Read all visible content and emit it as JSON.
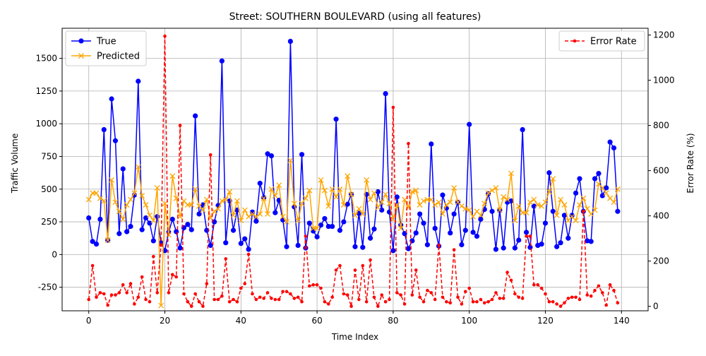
{
  "chart_data": {
    "type": "line",
    "title": "Street: SOUTHERN BOULEVARD (using all features)",
    "xlabel": "Time Index",
    "ylabel": "Traffic Volume",
    "ylabel_right": "Error Rate (%)",
    "xlim": [
      -7,
      147
    ],
    "ylim": [
      -430,
      1730
    ],
    "ylim_right": [
      -20,
      1230
    ],
    "x_ticks": [
      0,
      20,
      40,
      60,
      80,
      100,
      120,
      140
    ],
    "y_ticks": [
      -250,
      0,
      250,
      500,
      750,
      1000,
      1250,
      1500
    ],
    "y_ticks_right": [
      0,
      200,
      400,
      600,
      800,
      1000,
      1200
    ],
    "grid": true,
    "legend_left": "top-left",
    "legend_right": "top-right",
    "series": [
      {
        "name": "True",
        "axis": "left",
        "color": "#0000ff",
        "marker": "circle",
        "linestyle": "solid",
        "values": [
          280,
          100,
          80,
          270,
          955,
          110,
          1190,
          870,
          160,
          655,
          175,
          215,
          455,
          1325,
          190,
          280,
          240,
          105,
          290,
          90,
          30,
          170,
          270,
          175,
          50,
          205,
          230,
          190,
          1060,
          310,
          380,
          185,
          70,
          250,
          375,
          1480,
          90,
          410,
          185,
          340,
          85,
          120,
          40,
          325,
          255,
          545,
          435,
          770,
          755,
          320,
          415,
          265,
          60,
          1630,
          365,
          70,
          765,
          50,
          240,
          180,
          135,
          225,
          275,
          215,
          215,
          1035,
          185,
          250,
          385,
          460,
          60,
          315,
          55,
          460,
          125,
          195,
          480,
          340,
          1230,
          325,
          30,
          440,
          225,
          160,
          45,
          105,
          165,
          310,
          240,
          75,
          845,
          200,
          65,
          455,
          355,
          165,
          310,
          400,
          75,
          185,
          995,
          170,
          140,
          270,
          345,
          465,
          330,
          40,
          340,
          50,
          400,
          410,
          50,
          110,
          955,
          170,
          55,
          370,
          70,
          80,
          240,
          625,
          330,
          60,
          90,
          300,
          125,
          300,
          470,
          580,
          330,
          105,
          100,
          580,
          620,
          450,
          510,
          860,
          815,
          330
        ]
      },
      {
        "name": "Predicted",
        "axis": "left",
        "color": "#ffa500",
        "marker": "x",
        "linestyle": "solid",
        "values": [
          420,
          470,
          470,
          430,
          410,
          110,
          570,
          400,
          330,
          270,
          380,
          420,
          470,
          670,
          450,
          380,
          300,
          260,
          510,
          -390,
          390,
          150,
          600,
          430,
          290,
          410,
          380,
          380,
          500,
          370,
          340,
          420,
          280,
          330,
          350,
          410,
          420,
          480,
          300,
          410,
          260,
          340,
          290,
          310,
          290,
          310,
          430,
          310,
          500,
          450,
          530,
          290,
          250,
          720,
          390,
          260,
          390,
          430,
          490,
          200,
          200,
          570,
          490,
          370,
          500,
          440,
          500,
          380,
          600,
          460,
          300,
          350,
          310,
          570,
          420,
          470,
          360,
          400,
          460,
          390,
          270,
          380,
          200,
          420,
          360,
          480,
          490,
          380,
          410,
          420,
          420,
          380,
          400,
          310,
          380,
          400,
          510,
          400,
          370,
          350,
          340,
          290,
          330,
          300,
          390,
          470,
          490,
          510,
          340,
          440,
          420,
          620,
          260,
          370,
          320,
          320,
          400,
          420,
          380,
          370,
          400,
          480,
          580,
          300,
          420,
          380,
          260,
          290,
          260,
          380,
          430,
          350,
          310,
          340,
          540,
          510,
          470,
          430,
          400,
          500
        ]
      },
      {
        "name": "Error Rate",
        "axis": "right",
        "color": "#ff0000",
        "marker": "dot",
        "linestyle": "dashed",
        "values": [
          30,
          180,
          40,
          60,
          55,
          5,
          50,
          50,
          60,
          95,
          60,
          100,
          10,
          40,
          130,
          30,
          20,
          220,
          60,
          270,
          1195,
          60,
          140,
          130,
          800,
          55,
          20,
          0,
          55,
          20,
          0,
          100,
          670,
          30,
          30,
          45,
          210,
          20,
          30,
          20,
          80,
          100,
          230,
          55,
          30,
          40,
          35,
          60,
          35,
          30,
          30,
          65,
          65,
          55,
          35,
          40,
          20,
          310,
          90,
          95,
          95,
          80,
          20,
          10,
          40,
          160,
          180,
          55,
          50,
          0,
          160,
          30,
          180,
          20,
          205,
          40,
          0,
          50,
          20,
          30,
          880,
          60,
          50,
          10,
          720,
          50,
          160,
          40,
          20,
          70,
          60,
          30,
          270,
          40,
          20,
          15,
          250,
          40,
          10,
          65,
          80,
          20,
          20,
          30,
          15,
          20,
          30,
          60,
          35,
          35,
          150,
          115,
          55,
          40,
          35,
          310,
          310,
          95,
          95,
          80,
          55,
          20,
          20,
          10,
          0,
          15,
          35,
          40,
          40,
          30,
          420,
          50,
          45,
          70,
          90,
          60,
          5,
          95,
          70,
          15
        ]
      }
    ]
  }
}
